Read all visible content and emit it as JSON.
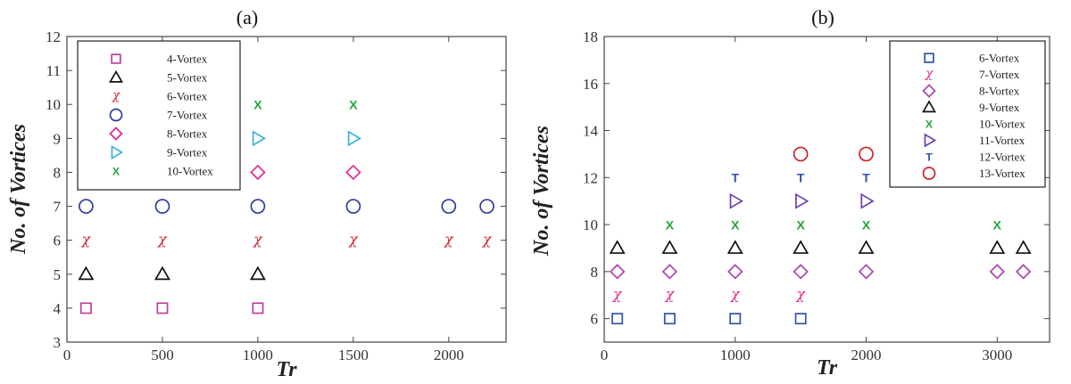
{
  "chart_data": [
    {
      "type": "scatter",
      "panel_label": "(a)",
      "xlabel": "Tr",
      "ylabel": "No. of Vortices",
      "xlim": [
        0,
        2300
      ],
      "ylim": [
        3,
        12
      ],
      "xticks": [
        0,
        500,
        1000,
        1500,
        2000
      ],
      "yticks": [
        3,
        4,
        5,
        6,
        7,
        8,
        9,
        10,
        11,
        12
      ],
      "legend_position": "top-left",
      "series": [
        {
          "name": "4-Vortex",
          "marker": "square",
          "color": "#c2409c",
          "x": [
            100,
            500,
            1000
          ],
          "y": [
            4,
            4,
            4
          ]
        },
        {
          "name": "5-Vortex",
          "marker": "triangle-up",
          "color": "#111111",
          "x": [
            100,
            500,
            1000
          ],
          "y": [
            5,
            5,
            5
          ]
        },
        {
          "name": "6-Vortex",
          "marker": "chi",
          "color": "#cc2233",
          "x": [
            100,
            500,
            1000,
            1500,
            2000,
            2200
          ],
          "y": [
            6,
            6,
            6,
            6,
            6,
            6
          ]
        },
        {
          "name": "7-Vortex",
          "marker": "circle",
          "color": "#2e3d99",
          "x": [
            100,
            500,
            1000,
            1500,
            2000,
            2200
          ],
          "y": [
            7,
            7,
            7,
            7,
            7,
            7
          ]
        },
        {
          "name": "8-Vortex",
          "marker": "diamond",
          "color": "#e0288a",
          "x": [
            1000,
            1500
          ],
          "y": [
            8,
            8
          ]
        },
        {
          "name": "9-Vortex",
          "marker": "triangle-right",
          "color": "#3ab4d8",
          "x": [
            1000,
            1500
          ],
          "y": [
            9,
            9
          ]
        },
        {
          "name": "10-Vortex",
          "marker": "x",
          "color": "#27a63c",
          "x": [
            1000,
            1500
          ],
          "y": [
            10,
            10
          ]
        }
      ]
    },
    {
      "type": "scatter",
      "panel_label": "(b)",
      "xlabel": "Tr",
      "ylabel": "No. of Vortices",
      "xlim": [
        0,
        3400
      ],
      "ylim": [
        5,
        18
      ],
      "xticks": [
        0,
        1000,
        2000,
        3000
      ],
      "yticks": [
        6,
        8,
        10,
        12,
        14,
        16,
        18
      ],
      "legend_position": "top-right",
      "series": [
        {
          "name": "6-Vortex",
          "marker": "square",
          "color": "#2e55a8",
          "x": [
            100,
            500,
            1000,
            1500
          ],
          "y": [
            6,
            6,
            6,
            6
          ]
        },
        {
          "name": "7-Vortex",
          "marker": "chi",
          "color": "#e0288a",
          "x": [
            100,
            500,
            1000,
            1500
          ],
          "y": [
            7,
            7,
            7,
            7
          ]
        },
        {
          "name": "8-Vortex",
          "marker": "diamond",
          "color": "#a845b0",
          "x": [
            100,
            500,
            1000,
            1500,
            2000,
            3000,
            3200
          ],
          "y": [
            8,
            8,
            8,
            8,
            8,
            8,
            8
          ]
        },
        {
          "name": "9-Vortex",
          "marker": "triangle-up",
          "color": "#111111",
          "x": [
            100,
            500,
            1000,
            1500,
            2000,
            3000,
            3200
          ],
          "y": [
            9,
            9,
            9,
            9,
            9,
            9,
            9
          ]
        },
        {
          "name": "10-Vortex",
          "marker": "x",
          "color": "#27a63c",
          "x": [
            500,
            1000,
            1500,
            2000,
            3000
          ],
          "y": [
            10,
            10,
            10,
            10,
            10
          ]
        },
        {
          "name": "11-Vortex",
          "marker": "triangle-right",
          "color": "#6a3fb0",
          "x": [
            1000,
            1500,
            2000
          ],
          "y": [
            11,
            11,
            11
          ]
        },
        {
          "name": "12-Vortex",
          "marker": "tee",
          "color": "#2e55a8",
          "x": [
            1000,
            1500,
            2000
          ],
          "y": [
            12,
            12,
            12
          ]
        },
        {
          "name": "13-Vortex",
          "marker": "circle",
          "color": "#cc2222",
          "x": [
            1500,
            2000
          ],
          "y": [
            13,
            13
          ]
        }
      ]
    }
  ]
}
